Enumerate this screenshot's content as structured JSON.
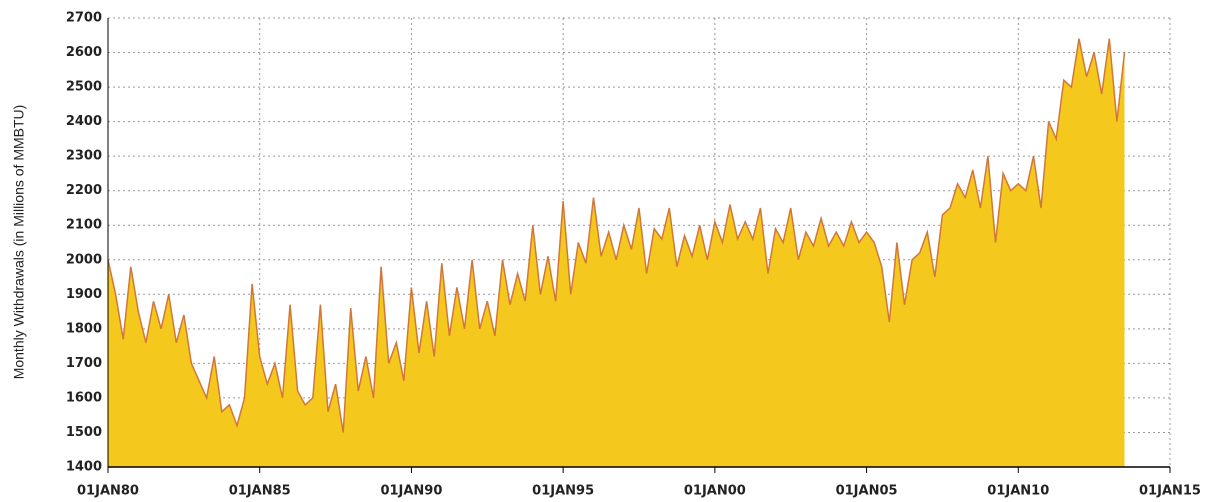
{
  "chart_data": {
    "type": "area",
    "y_label": "Monthly Withdrawals (in Millions of MMBTU)",
    "x": [
      1980,
      1980.25,
      1980.5,
      1980.75,
      1981,
      1981.25,
      1981.5,
      1981.75,
      1982,
      1982.25,
      1982.5,
      1982.75,
      1983,
      1983.25,
      1983.5,
      1983.75,
      1984,
      1984.25,
      1984.5,
      1984.75,
      1985,
      1985.25,
      1985.5,
      1985.75,
      1986,
      1986.25,
      1986.5,
      1986.75,
      1987,
      1987.25,
      1987.5,
      1987.75,
      1988,
      1988.25,
      1988.5,
      1988.75,
      1989,
      1989.25,
      1989.5,
      1989.75,
      1990,
      1990.25,
      1990.5,
      1990.75,
      1991,
      1991.25,
      1991.5,
      1991.75,
      1992,
      1992.25,
      1992.5,
      1992.75,
      1993,
      1993.25,
      1993.5,
      1993.75,
      1994,
      1994.25,
      1994.5,
      1994.75,
      1995,
      1995.25,
      1995.5,
      1995.75,
      1996,
      1996.25,
      1996.5,
      1996.75,
      1997,
      1997.25,
      1997.5,
      1997.75,
      1998,
      1998.25,
      1998.5,
      1998.75,
      1999,
      1999.25,
      1999.5,
      1999.75,
      2000,
      2000.25,
      2000.5,
      2000.75,
      2001,
      2001.25,
      2001.5,
      2001.75,
      2002,
      2002.25,
      2002.5,
      2002.75,
      2003,
      2003.25,
      2003.5,
      2003.75,
      2004,
      2004.25,
      2004.5,
      2004.75,
      2005,
      2005.25,
      2005.5,
      2005.75,
      2006,
      2006.25,
      2006.5,
      2006.75,
      2007,
      2007.25,
      2007.5,
      2007.75,
      2008,
      2008.25,
      2008.5,
      2008.75,
      2009,
      2009.25,
      2009.5,
      2009.75,
      2010,
      2010.25,
      2010.5,
      2010.75,
      2011,
      2011.25,
      2011.5,
      2011.75,
      2012,
      2012.25,
      2012.5,
      2012.75,
      2013,
      2013.25,
      2013.5
    ],
    "values": [
      2000,
      1900,
      1770,
      1980,
      1850,
      1760,
      1880,
      1800,
      1900,
      1760,
      1840,
      1700,
      1650,
      1600,
      1720,
      1560,
      1580,
      1520,
      1600,
      1930,
      1720,
      1640,
      1700,
      1600,
      1870,
      1620,
      1580,
      1600,
      1870,
      1560,
      1640,
      1500,
      1860,
      1620,
      1720,
      1600,
      1980,
      1700,
      1760,
      1650,
      1920,
      1730,
      1880,
      1720,
      1990,
      1780,
      1920,
      1800,
      2000,
      1800,
      1880,
      1780,
      2000,
      1870,
      1960,
      1880,
      2100,
      1900,
      2010,
      1880,
      2170,
      1900,
      2050,
      1990,
      2180,
      2010,
      2080,
      2000,
      2100,
      2030,
      2150,
      1960,
      2090,
      2060,
      2150,
      1980,
      2070,
      2010,
      2100,
      2000,
      2110,
      2050,
      2160,
      2060,
      2110,
      2060,
      2150,
      1960,
      2090,
      2050,
      2150,
      2000,
      2080,
      2040,
      2120,
      2040,
      2080,
      2040,
      2110,
      2050,
      2080,
      2050,
      1980,
      1820,
      2050,
      1870,
      2000,
      2020,
      2080,
      1950,
      2130,
      2150,
      2220,
      2180,
      2260,
      2150,
      2300,
      2050,
      2250,
      2200,
      2220,
      2200,
      2300,
      2150,
      2400,
      2350,
      2520,
      2500,
      2640,
      2530,
      2600,
      2480,
      2640,
      2400,
      2600
    ],
    "color": "#f4c81c",
    "line_color": "#d2773a",
    "xlim": [
      1980,
      2015
    ],
    "xticks": [
      {
        "value": 1980,
        "label": "01JAN80"
      },
      {
        "value": 1985,
        "label": "01JAN85"
      },
      {
        "value": 1990,
        "label": "01JAN90"
      },
      {
        "value": 1995,
        "label": "01JAN95"
      },
      {
        "value": 2000,
        "label": "01JAN00"
      },
      {
        "value": 2005,
        "label": "01JAN05"
      },
      {
        "value": 2010,
        "label": "01JAN10"
      },
      {
        "value": 2015,
        "label": "01JAN15"
      }
    ],
    "ylim": [
      1400,
      2700
    ],
    "yticks": [
      1400,
      1500,
      1600,
      1700,
      1800,
      1900,
      2000,
      2100,
      2200,
      2300,
      2400,
      2500,
      2600,
      2700
    ],
    "grid": true
  }
}
